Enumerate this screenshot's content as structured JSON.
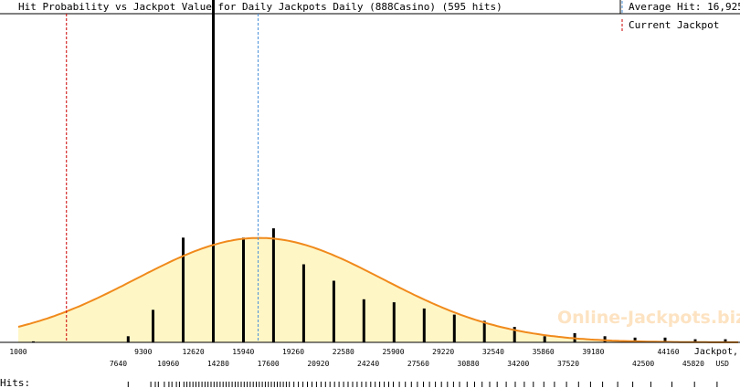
{
  "chart_data": {
    "type": "bar",
    "title": "Hit Probability vs Jackpot Value for Daily Jackpots Daily (888Casino) (595 hits)",
    "legend": {
      "average_hit_label": "Average Hit: 16,925",
      "current_jackpot_label": "Current Jackpot"
    },
    "x_axis_label_line1": "Jackpot,",
    "x_axis_label_line2": "USD",
    "hits_label": "Hits:",
    "watermark": "Online-Jackpots.biz",
    "xlim": [
      1000,
      48800
    ],
    "average_hit": 16925,
    "current_jackpot": 4200,
    "curve": {
      "mean": 17000,
      "sd": 8200,
      "peak_fraction": 0.305
    },
    "ticks_upper": [
      "1000",
      "9300",
      "12620",
      "15940",
      "19260",
      "22580",
      "25900",
      "29220",
      "32540",
      "35860",
      "39180",
      "44160",
      "Jackpot,"
    ],
    "ticks_upper_values": [
      1000,
      9300,
      12620,
      15940,
      19260,
      22580,
      25900,
      29220,
      32540,
      35860,
      39180,
      44160,
      48800
    ],
    "ticks_lower": [
      "7640",
      "10960",
      "14280",
      "17600",
      "20920",
      "24240",
      "27560",
      "30880",
      "34200",
      "37520",
      "42500",
      "45820",
      "USD"
    ],
    "ticks_lower_values": [
      7640,
      10960,
      14280,
      17600,
      20920,
      24240,
      27560,
      30880,
      34200,
      37520,
      42500,
      45820,
      48800
    ],
    "bars": [
      {
        "x": 2000,
        "value": 0.003
      },
      {
        "x": 8300,
        "value": 0.018
      },
      {
        "x": 9950,
        "value": 0.095
      },
      {
        "x": 11950,
        "value": 0.306
      },
      {
        "x": 13950,
        "value": 1.0
      },
      {
        "x": 15950,
        "value": 0.306
      },
      {
        "x": 17950,
        "value": 0.333
      },
      {
        "x": 19950,
        "value": 0.228
      },
      {
        "x": 21950,
        "value": 0.18
      },
      {
        "x": 23950,
        "value": 0.126
      },
      {
        "x": 25950,
        "value": 0.117
      },
      {
        "x": 27950,
        "value": 0.099
      },
      {
        "x": 29950,
        "value": 0.081
      },
      {
        "x": 31950,
        "value": 0.063
      },
      {
        "x": 33950,
        "value": 0.045
      },
      {
        "x": 35950,
        "value": 0.018
      },
      {
        "x": 37950,
        "value": 0.027
      },
      {
        "x": 39950,
        "value": 0.018
      },
      {
        "x": 41950,
        "value": 0.014
      },
      {
        "x": 43950,
        "value": 0.014
      },
      {
        "x": 45950,
        "value": 0.009
      },
      {
        "x": 47950,
        "value": 0.009
      }
    ],
    "hits_rug": [
      8300,
      9800,
      10100,
      10300,
      10700,
      11000,
      11200,
      11500,
      11700,
      12000,
      12200,
      12400,
      12600,
      12800,
      13000,
      13200,
      13400,
      13600,
      13800,
      14000,
      14200,
      14400,
      14600,
      14800,
      15000,
      15200,
      15400,
      15600,
      15800,
      16000,
      16200,
      16400,
      16600,
      16800,
      17000,
      17200,
      17400,
      17600,
      17800,
      18000,
      18200,
      18400,
      18600,
      18800,
      19000,
      19300,
      19600,
      19900,
      20200,
      20500,
      20800,
      21100,
      21400,
      21700,
      22000,
      22300,
      22600,
      22900,
      23200,
      23500,
      23800,
      24100,
      24400,
      24700,
      25000,
      25300,
      25600,
      25900,
      26300,
      26700,
      27100,
      27500,
      27900,
      28300,
      28700,
      29100,
      29500,
      29900,
      30300,
      30800,
      31300,
      31800,
      32300,
      32800,
      33400,
      34000,
      34600,
      35200,
      35900,
      36600,
      37400,
      38200,
      39000,
      39800,
      40800,
      41800,
      43000,
      44400,
      45900,
      47400
    ]
  }
}
